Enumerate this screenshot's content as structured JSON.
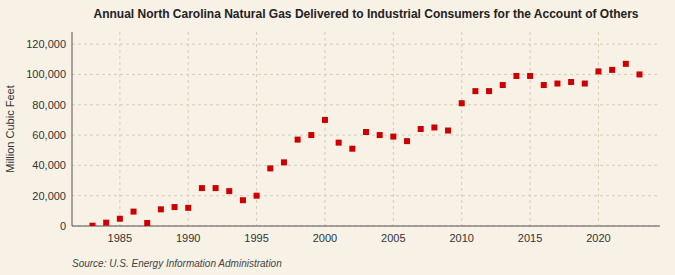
{
  "chart_data": {
    "type": "scatter",
    "title": "Annual North Carolina Natural Gas Delivered to Industrial Consumers for the Account of Others",
    "ylabel": "Million Cubic Feet",
    "source": "Source: U.S. Energy Information Administration",
    "color": "#cc0000",
    "marker": "square",
    "grid": true,
    "x": [
      1983,
      1984,
      1985,
      1986,
      1987,
      1988,
      1989,
      1990,
      1991,
      1992,
      1993,
      1994,
      1995,
      1996,
      1997,
      1998,
      1999,
      2000,
      2001,
      2002,
      2003,
      2004,
      2005,
      2006,
      2007,
      2008,
      2009,
      2010,
      2011,
      2012,
      2013,
      2014,
      2015,
      2016,
      2017,
      2018,
      2019,
      2020,
      2021,
      2022,
      2023
    ],
    "values": [
      200,
      2200,
      4800,
      9500,
      2000,
      11000,
      12500,
      12000,
      25000,
      25000,
      23000,
      17000,
      20000,
      38000,
      42000,
      57000,
      60000,
      70000,
      55000,
      51000,
      62000,
      60000,
      59000,
      56000,
      64000,
      65000,
      63000,
      81000,
      89000,
      89000,
      93000,
      99000,
      99000,
      93000,
      94000,
      95000,
      94000,
      102000,
      103000,
      107000,
      100000
    ],
    "xlim": [
      1981.5,
      2024.5
    ],
    "ylim": [
      0,
      128000
    ],
    "xticks": [
      1985,
      1990,
      1995,
      2000,
      2005,
      2010,
      2015,
      2020
    ],
    "yticks": [
      0,
      {
        "value": 20000,
        "label": "20,000"
      },
      {
        "value": 40000,
        "label": "40,000"
      },
      {
        "value": 60000,
        "label": "60,000"
      },
      {
        "value": 80000,
        "label": "80,000"
      },
      {
        "value": 100000,
        "label": "100,000"
      },
      {
        "value": 120000,
        "label": "120,000"
      }
    ]
  }
}
